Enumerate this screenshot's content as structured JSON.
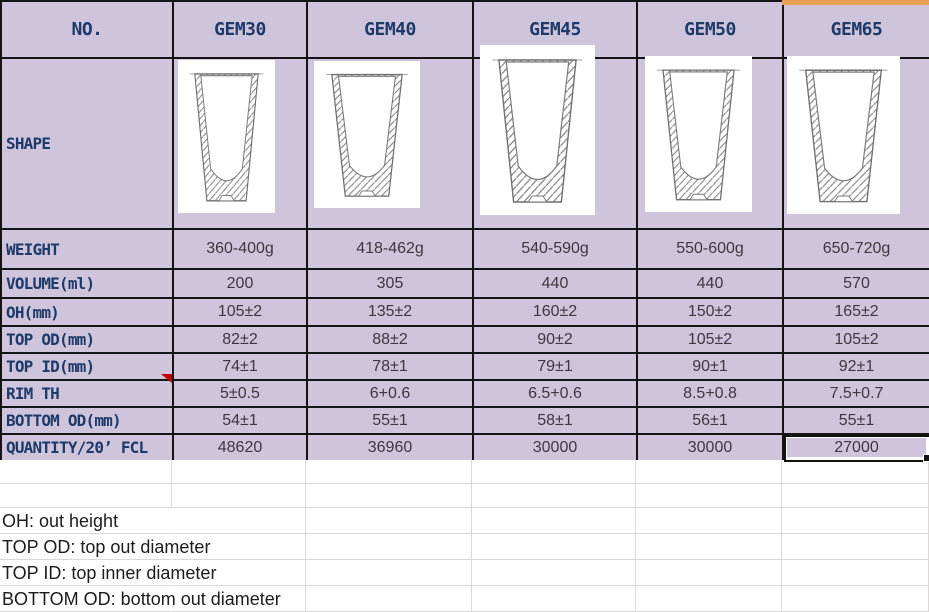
{
  "sheet": {
    "corner_label": "NO.",
    "columns": [
      "GEM30",
      "GEM40",
      "GEM45",
      "GEM50",
      "GEM65"
    ],
    "shape_row": {
      "label": "SHAPE",
      "images": [
        "cup-cross-section-icon",
        "cup-cross-section-icon",
        "cup-cross-section-icon",
        "cup-cross-section-icon",
        "cup-cross-section-icon"
      ]
    },
    "spec_rows": [
      {
        "label": "WEIGHT",
        "values": [
          "360-400g",
          "418-462g",
          "540-590g",
          "550-600g",
          "650-720g"
        ]
      },
      {
        "label": "VOLUME(ml)",
        "values": [
          "200",
          "305",
          "440",
          "440",
          "570"
        ]
      },
      {
        "label": "OH(mm)",
        "values": [
          "105±2",
          "135±2",
          "160±2",
          "150±2",
          "165±2"
        ]
      },
      {
        "label": "TOP OD(mm)",
        "values": [
          "82±2",
          "88±2",
          "90±2",
          "105±2",
          "105±2"
        ]
      },
      {
        "label": "TOP ID(mm)",
        "values": [
          "74±1",
          "78±1",
          "79±1",
          "90±1",
          "92±1"
        ]
      },
      {
        "label": "RIM TH",
        "values": [
          "5±0.5",
          "6+0.6",
          "6.5+0.6",
          "8.5+0.8",
          "7.5+0.7"
        ],
        "has_comment_marker": true
      },
      {
        "label": "BOTTOM OD(mm)",
        "values": [
          "54±1",
          "55±1",
          "58±1",
          "56±1",
          "55±1"
        ]
      },
      {
        "label": "QUANTITY/20’ FCL",
        "values": [
          "48620",
          "36960",
          "30000",
          "30000",
          "27000"
        ],
        "selected_value_index": 4
      }
    ],
    "footnotes": [
      "OH: out height",
      "TOP OD: top out diameter",
      "TOP ID: top inner diameter",
      "BOTTOM OD: bottom out diameter"
    ],
    "selection": {
      "row_label": "QUANTITY/20’ FCL",
      "column": "GEM65",
      "value": "27000"
    },
    "comment_marker_row": "RIM TH",
    "colors": {
      "cell_lavender": "#cec4dc",
      "header_text_navy": "#1e3a68",
      "value_text": "#3d3741",
      "table_border": "#141414",
      "gridline": "#dbd8d8",
      "accent_orange_bar": "#e7a258",
      "comment_marker_red": "#c00000",
      "sheet_background": "#ffffff"
    }
  }
}
